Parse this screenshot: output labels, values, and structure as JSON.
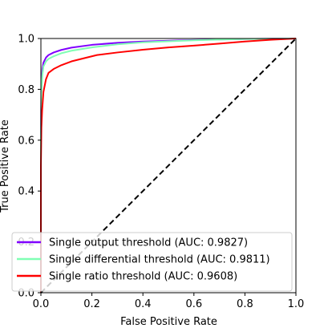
{
  "chart_data": {
    "type": "line",
    "title": "",
    "xlabel": "False Positive Rate",
    "ylabel": "True Positive Rate",
    "xlim": [
      0.0,
      1.0
    ],
    "ylim": [
      0.0,
      1.0
    ],
    "xticks": [
      "0.0",
      "0.2",
      "0.4",
      "0.6",
      "0.8",
      "1.0"
    ],
    "yticks": [
      "0.0",
      "0.2",
      "0.4",
      "0.6",
      "0.8",
      "1.0"
    ],
    "grid": false,
    "legend_position": "lower-right",
    "series": [
      {
        "name": "Single output threshold (AUC: 0.9827)",
        "color": "#8000ff",
        "points": [
          [
            0.0,
            0.0
          ],
          [
            0.0,
            0.6
          ],
          [
            0.002,
            0.82
          ],
          [
            0.006,
            0.88
          ],
          [
            0.01,
            0.905
          ],
          [
            0.02,
            0.925
          ],
          [
            0.03,
            0.935
          ],
          [
            0.05,
            0.945
          ],
          [
            0.08,
            0.955
          ],
          [
            0.12,
            0.964
          ],
          [
            0.2,
            0.975
          ],
          [
            0.3,
            0.983
          ],
          [
            0.4,
            0.988
          ],
          [
            0.6,
            0.994
          ],
          [
            0.8,
            0.998
          ],
          [
            1.0,
            1.0
          ]
        ]
      },
      {
        "name": "Single differential threshold (AUC: 0.9811)",
        "color": "#80ffb4",
        "points": [
          [
            0.0,
            0.0
          ],
          [
            0.0,
            0.6
          ],
          [
            0.002,
            0.79
          ],
          [
            0.006,
            0.86
          ],
          [
            0.01,
            0.89
          ],
          [
            0.02,
            0.91
          ],
          [
            0.03,
            0.92
          ],
          [
            0.05,
            0.93
          ],
          [
            0.08,
            0.942
          ],
          [
            0.12,
            0.952
          ],
          [
            0.2,
            0.965
          ],
          [
            0.3,
            0.977
          ],
          [
            0.4,
            0.985
          ],
          [
            0.6,
            0.993
          ],
          [
            0.8,
            0.998
          ],
          [
            1.0,
            1.0
          ]
        ]
      },
      {
        "name": "Single ratio threshold (AUC: 0.9608)",
        "color": "#ff0000",
        "points": [
          [
            0.0,
            0.0
          ],
          [
            0.0,
            0.5
          ],
          [
            0.002,
            0.65
          ],
          [
            0.005,
            0.72
          ],
          [
            0.01,
            0.79
          ],
          [
            0.02,
            0.84
          ],
          [
            0.03,
            0.865
          ],
          [
            0.05,
            0.88
          ],
          [
            0.08,
            0.895
          ],
          [
            0.12,
            0.91
          ],
          [
            0.18,
            0.925
          ],
          [
            0.22,
            0.935
          ],
          [
            0.3,
            0.945
          ],
          [
            0.4,
            0.956
          ],
          [
            0.5,
            0.965
          ],
          [
            0.6,
            0.972
          ],
          [
            0.7,
            0.98
          ],
          [
            0.8,
            0.988
          ],
          [
            0.9,
            0.995
          ],
          [
            1.0,
            1.0
          ]
        ]
      },
      {
        "name": "",
        "color": "#000000",
        "dashed": true,
        "points": [
          [
            0.0,
            0.0
          ],
          [
            1.0,
            1.0
          ]
        ]
      }
    ]
  }
}
